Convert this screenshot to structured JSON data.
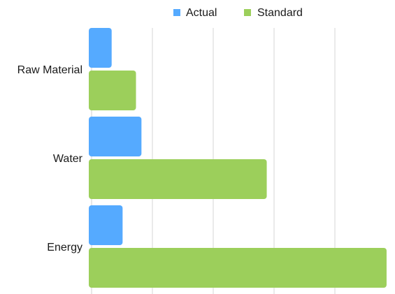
{
  "chart_data": {
    "type": "bar",
    "orientation": "horizontal",
    "categories": [
      "Raw Material",
      "Water",
      "Energy"
    ],
    "series": [
      {
        "name": "Actual",
        "color": "#55aaff",
        "values": [
          0.33,
          0.82,
          0.51
        ]
      },
      {
        "name": "Standard",
        "color": "#9ccf5b",
        "values": [
          0.73,
          2.88,
          4.85
        ]
      }
    ],
    "xlim": [
      0,
      5
    ],
    "grid": true,
    "legend_position": "top-center"
  }
}
